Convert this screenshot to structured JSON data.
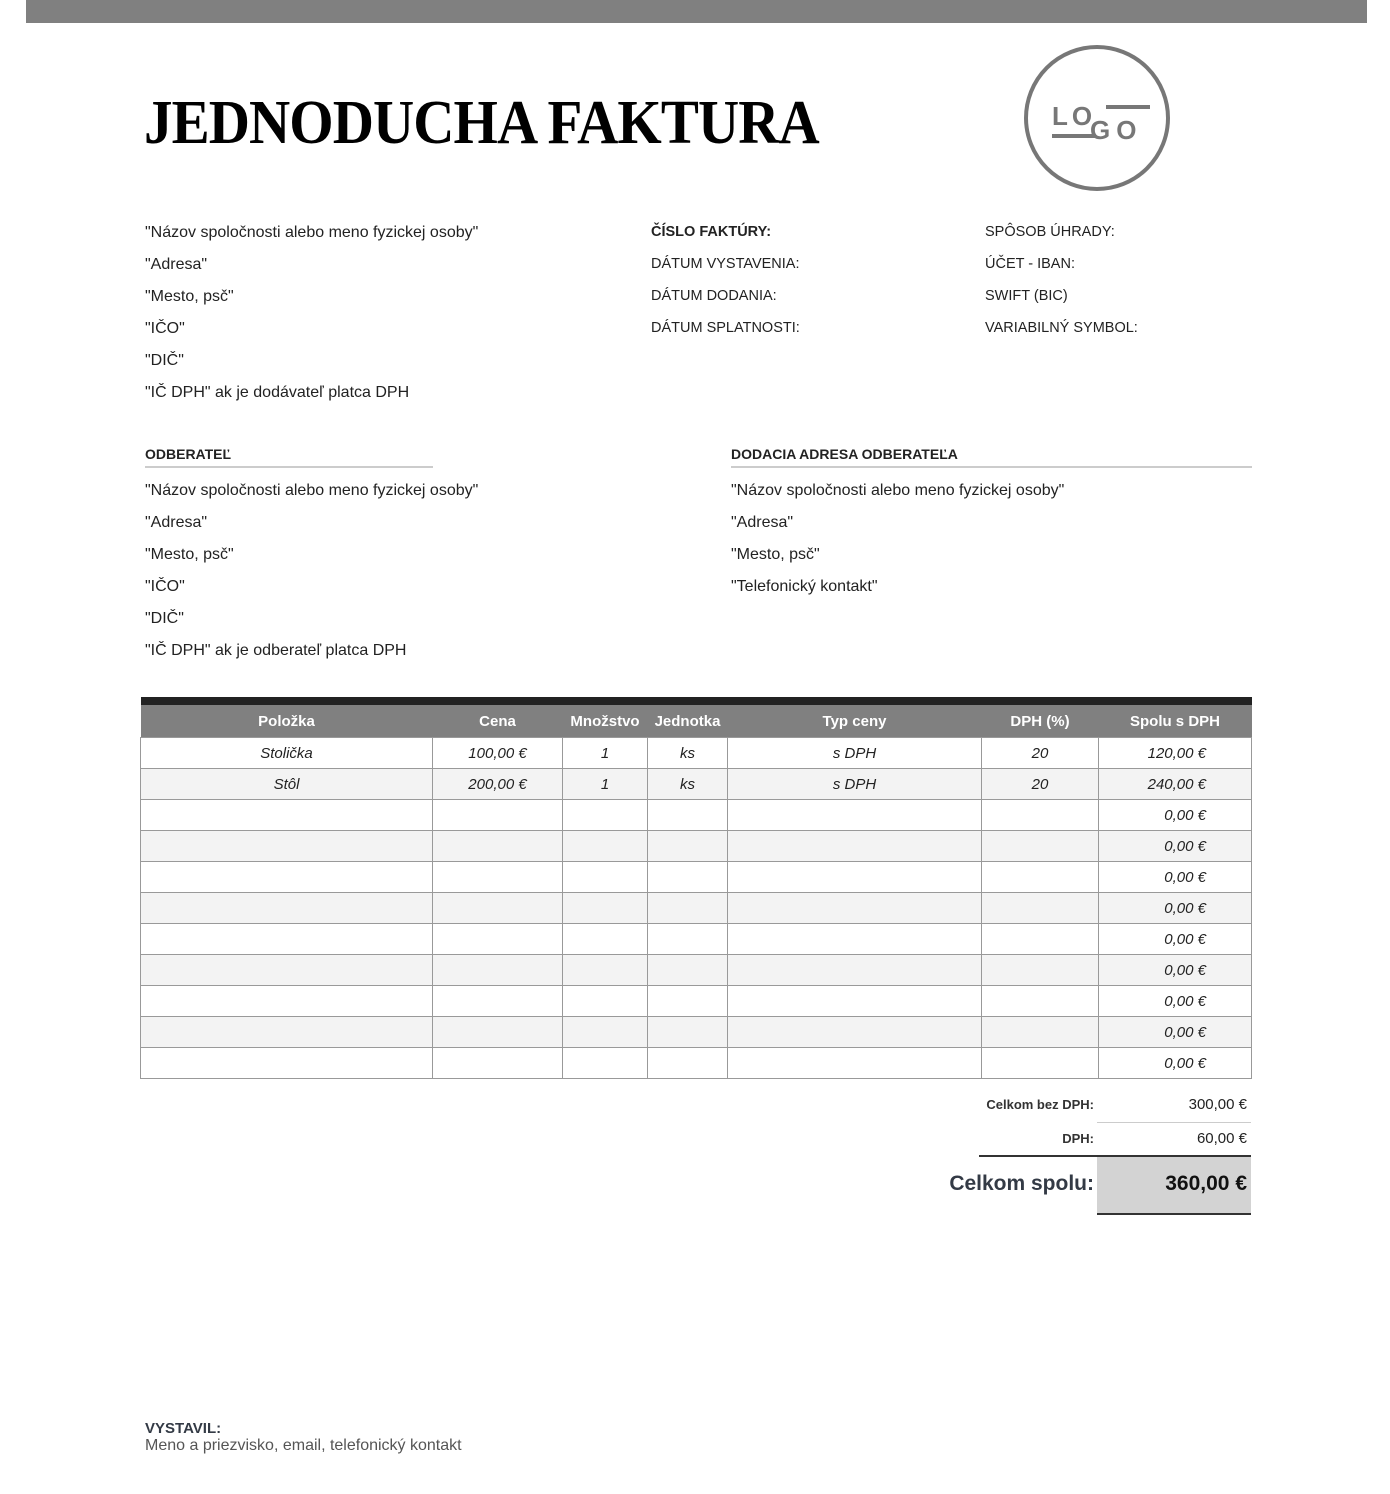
{
  "title": "JEDNODUCHA FAKTURA",
  "logo_text": "LOGO",
  "supplier": [
    "\"Názov spoločnosti alebo meno fyzickej osoby\"",
    "\"Adresa\"",
    "\"Mesto, psč\"",
    "\"IČO\"",
    "\"DIČ\"",
    "\"IČ DPH\" ak je dodávateľ platca DPH"
  ],
  "invoice_labels": [
    "ČÍSLO FAKTÚRY:",
    "DÁTUM VYSTAVENIA:",
    "DÁTUM DODANIA:",
    "DÁTUM SPLATNOSTI:"
  ],
  "payment_labels": [
    "SPÔSOB ÚHRADY:",
    "ÚČET - IBAN:",
    "SWIFT (BIC)",
    "VARIABILNÝ SYMBOL:"
  ],
  "customer": {
    "heading": "ODBERATEĽ",
    "lines": [
      "\"Názov spoločnosti alebo meno fyzickej osoby\"",
      "\"Adresa\"",
      "\"Mesto, psč\"",
      "\"IČO\"",
      "\"DIČ\"",
      "\"IČ DPH\" ak je odberateľ platca DPH"
    ]
  },
  "delivery": {
    "heading": "DODACIA ADRESA ODBERATEĽA",
    "lines": [
      "\"Názov spoločnosti alebo meno fyzickej osoby\"",
      "\"Adresa\"",
      "\"Mesto, psč\"",
      "\"Telefonický kontakt\""
    ]
  },
  "table": {
    "headers": [
      "Položka",
      "Cena",
      "Množstvo",
      "Jednotka",
      "Typ ceny",
      "DPH (%)",
      "Spolu s DPH"
    ],
    "rows": [
      [
        "Stolička",
        "100,00 €",
        "1",
        "ks",
        "s DPH",
        "20",
        "120,00 €"
      ],
      [
        "Stôl",
        "200,00 €",
        "1",
        "ks",
        "s DPH",
        "20",
        "240,00 €"
      ],
      [
        "",
        "",
        "",
        "",
        "",
        "",
        "0,00 €"
      ],
      [
        "",
        "",
        "",
        "",
        "",
        "",
        "0,00 €"
      ],
      [
        "",
        "",
        "",
        "",
        "",
        "",
        "0,00 €"
      ],
      [
        "",
        "",
        "",
        "",
        "",
        "",
        "0,00 €"
      ],
      [
        "",
        "",
        "",
        "",
        "",
        "",
        "0,00 €"
      ],
      [
        "",
        "",
        "",
        "",
        "",
        "",
        "0,00 €"
      ],
      [
        "",
        "",
        "",
        "",
        "",
        "",
        "0,00 €"
      ],
      [
        "",
        "",
        "",
        "",
        "",
        "",
        "0,00 €"
      ],
      [
        "",
        "",
        "",
        "",
        "",
        "",
        "0,00 €"
      ]
    ]
  },
  "totals": {
    "subtotal_label": "Celkom bez DPH:",
    "subtotal": "300,00 €",
    "vat_label": "DPH:",
    "vat": "60,00 €",
    "total_label": "Celkom spolu:",
    "total": "360,00 €"
  },
  "footer": {
    "label": "VYSTAVIL:",
    "text": "Meno a priezvisko, email, telefonický kontakt"
  }
}
